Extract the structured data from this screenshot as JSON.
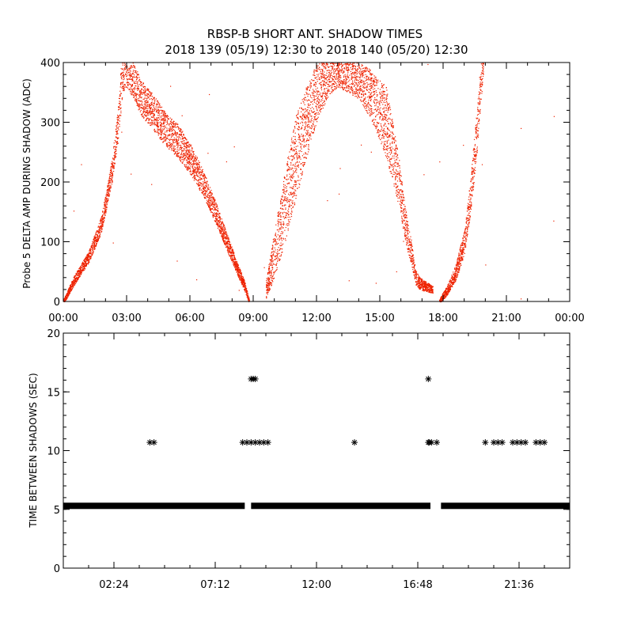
{
  "title_line1": "RBSP-B SHORT ANT. SHADOW TIMES",
  "title_line2": "2018 139 (05/19) 12:30 to 2018 140 (05/20) 12:30",
  "colors": {
    "red_points": "#ee2200",
    "black_points": "#000000",
    "axes": "#000000"
  },
  "chart_data": [
    {
      "type": "scatter",
      "ylabel": "Probe 5 DELTA AMP DURING SHADOW (ADC)",
      "xlabel": "",
      "x_unit": "hours",
      "xlim": [
        0,
        24
      ],
      "ylim": [
        0,
        400
      ],
      "x_tick_values": [
        0,
        3,
        6,
        9,
        12,
        15,
        18,
        21,
        24
      ],
      "x_tick_labels": [
        "00:00",
        "03:00",
        "06:00",
        "09:00",
        "12:00",
        "15:00",
        "18:00",
        "21:00",
        "00:00"
      ],
      "y_tick_values": [
        0,
        100,
        200,
        300,
        400
      ],
      "y_tick_labels": [
        "0",
        "100",
        "200",
        "300",
        "400"
      ],
      "grid": false,
      "legend": "none",
      "series": [
        {
          "color": "#ee2200",
          "note_bands": true,
          "bands": [
            {
              "x": [
                0.0,
                0.5,
                1.2,
                1.8,
                2.3,
                2.6,
                2.8,
                3.0,
                3.3,
                3.7,
                4.2,
                4.8,
                5.4,
                6.0,
                6.6,
                7.2,
                7.8,
                8.3,
                8.6,
                8.8
              ],
              "y": [
                0,
                35,
                75,
                130,
                220,
                300,
                390,
                400,
                370,
                340,
                320,
                290,
                270,
                240,
                200,
                150,
                95,
                50,
                25,
                0
              ],
              "spread": [
                4,
                8,
                10,
                14,
                20,
                30,
                40,
                40,
                30,
                30,
                30,
                28,
                28,
                26,
                22,
                18,
                14,
                10,
                8,
                4
              ]
            },
            {
              "x": [
                9.6,
                10.0,
                10.5,
                11.0,
                11.5,
                12.0,
                12.5,
                13.0,
                13.5,
                14.0,
                14.5,
                15.0,
                15.3
              ],
              "y": [
                20,
                80,
                160,
                240,
                300,
                350,
                380,
                390,
                380,
                370,
                350,
                320,
                300
              ],
              "spread": [
                15,
                40,
                60,
                70,
                60,
                50,
                40,
                30,
                30,
                30,
                40,
                50,
                60
              ]
            },
            {
              "x": [
                15.3,
                15.6,
                15.9,
                16.1,
                16.3,
                16.5,
                16.7,
                16.9,
                17.2,
                17.5
              ],
              "y": [
                300,
                250,
                200,
                150,
                110,
                80,
                40,
                30,
                25,
                20
              ],
              "spread": [
                60,
                50,
                40,
                30,
                25,
                20,
                12,
                10,
                8,
                6
              ]
            },
            {
              "x": [
                17.8,
                18.2,
                18.6,
                19.0,
                19.3,
                19.6,
                19.8,
                19.9
              ],
              "y": [
                0,
                20,
                50,
                100,
                180,
                290,
                380,
                400
              ],
              "spread": [
                4,
                8,
                14,
                20,
                30,
                40,
                40,
                20
              ]
            }
          ]
        }
      ]
    },
    {
      "type": "scatter",
      "ylabel": "TIME BETWEEN SHADOWS (SEC)",
      "xlabel": "",
      "x_unit": "hours",
      "xlim": [
        0,
        24
      ],
      "ylim": [
        0,
        20
      ],
      "x_tick_values": [
        2.4,
        7.2,
        12.0,
        16.8,
        21.6
      ],
      "x_tick_labels": [
        "02:24",
        "07:12",
        "12:00",
        "16:48",
        "21:36"
      ],
      "y_tick_values": [
        0,
        5,
        10,
        15,
        20
      ],
      "y_tick_labels": [
        "0",
        "5",
        "10",
        "15",
        "20"
      ],
      "grid": false,
      "legend": "none",
      "series": [
        {
          "color": "#000000",
          "baseline_value": 5.3,
          "baseline_ranges": [
            [
              0.0,
              8.6
            ],
            [
              8.9,
              17.4
            ],
            [
              17.9,
              24.0
            ]
          ],
          "points": [
            [
              4.1,
              10.7
            ],
            [
              4.3,
              10.7
            ],
            [
              8.5,
              10.7
            ],
            [
              8.7,
              10.7
            ],
            [
              8.9,
              16.1
            ],
            [
              9.0,
              16.1
            ],
            [
              9.1,
              16.1
            ],
            [
              8.9,
              10.7
            ],
            [
              9.1,
              10.7
            ],
            [
              9.3,
              10.7
            ],
            [
              9.5,
              10.7
            ],
            [
              9.7,
              10.7
            ],
            [
              13.8,
              10.7
            ],
            [
              17.3,
              16.1
            ],
            [
              17.3,
              10.7
            ],
            [
              17.35,
              10.7
            ],
            [
              17.45,
              10.7
            ],
            [
              17.7,
              10.7
            ],
            [
              20.0,
              10.7
            ],
            [
              20.4,
              10.7
            ],
            [
              20.6,
              10.7
            ],
            [
              20.8,
              10.7
            ],
            [
              21.3,
              10.7
            ],
            [
              21.5,
              10.7
            ],
            [
              21.7,
              10.7
            ],
            [
              21.9,
              10.7
            ],
            [
              22.4,
              10.7
            ],
            [
              22.6,
              10.7
            ],
            [
              22.8,
              10.7
            ]
          ]
        }
      ]
    }
  ]
}
